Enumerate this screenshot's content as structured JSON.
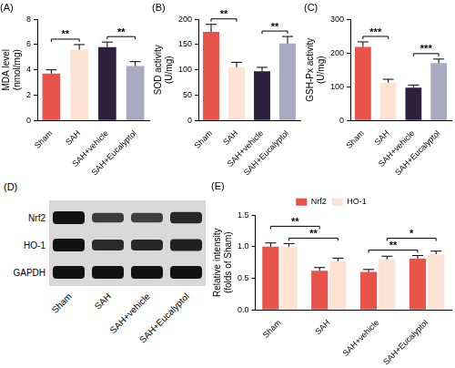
{
  "chart_data": [
    {
      "type": "bar",
      "title": "(A)",
      "y_label": [
        "MDA level",
        "(nmol/mg)"
      ],
      "categories": [
        "Sham",
        "SAH",
        "SAH+vehicle",
        "SAH+Eucalyptol"
      ],
      "values": [
        3.7,
        5.6,
        5.8,
        4.3
      ],
      "errors": [
        0.3,
        0.4,
        0.4,
        0.35
      ],
      "colors": [
        "#e8534a",
        "#fde3d3",
        "#2e1f3d",
        "#a9a9c2"
      ],
      "ylim": [
        0,
        8
      ],
      "yticks": [
        0,
        2,
        4,
        6,
        8
      ],
      "grid": false,
      "annotations": [
        {
          "text": "**",
          "between": [
            "Sham",
            "SAH"
          ]
        },
        {
          "text": "**",
          "between": [
            "SAH+vehicle",
            "SAH+Eucalyptol"
          ]
        }
      ]
    },
    {
      "type": "bar",
      "title": "(B)",
      "y_label": [
        "SOD activity",
        "(U/mg)"
      ],
      "categories": [
        "Sham",
        "SAH",
        "SAH+vehicle",
        "SAH+Eucalyptol"
      ],
      "values": [
        175,
        105,
        97,
        152
      ],
      "errors": [
        15,
        10,
        8,
        14
      ],
      "colors": [
        "#e8534a",
        "#fde3d3",
        "#2e1f3d",
        "#a9a9c2"
      ],
      "ylim": [
        0,
        200
      ],
      "yticks": [
        0,
        50,
        100,
        150,
        200
      ],
      "grid": false,
      "annotations": [
        {
          "text": "**",
          "between": [
            "Sham",
            "SAH"
          ]
        },
        {
          "text": "**",
          "between": [
            "SAH+vehicle",
            "SAH+Eucalyptol"
          ]
        }
      ]
    },
    {
      "type": "bar",
      "title": "(C)",
      "y_label": [
        "GSH-Px activity",
        "(U/mg)"
      ],
      "categories": [
        "Sham",
        "SAH",
        "SAH+vehicle",
        "SAH+Eucalyptol"
      ],
      "values": [
        218,
        112,
        97,
        170
      ],
      "errors": [
        15,
        10,
        8,
        12
      ],
      "colors": [
        "#e8534a",
        "#fde3d3",
        "#2e1f3d",
        "#a9a9c2"
      ],
      "ylim": [
        0,
        300
      ],
      "yticks": [
        0,
        100,
        200,
        300
      ],
      "grid": false,
      "annotations": [
        {
          "text": "***",
          "between": [
            "Sham",
            "SAH"
          ]
        },
        {
          "text": "***",
          "between": [
            "SAH+vehicle",
            "SAH+Eucalyptol"
          ]
        }
      ]
    },
    {
      "type": "bar",
      "title": "(E)",
      "y_label": [
        "Relative intensity",
        "(folds of Sham)"
      ],
      "categories": [
        "Sham",
        "SAH",
        "SAH+vehicle",
        "SAH+Eucalyptol"
      ],
      "series": [
        {
          "name": "Nrf2",
          "color": "#e8534a",
          "values": [
            1.0,
            0.62,
            0.6,
            0.81
          ],
          "errors": [
            0.06,
            0.05,
            0.04,
            0.05
          ]
        },
        {
          "name": "HO-1",
          "color": "#fde3d3",
          "values": [
            1.0,
            0.77,
            0.8,
            0.88
          ],
          "errors": [
            0.05,
            0.05,
            0.05,
            0.05
          ]
        }
      ],
      "ylim": [
        0,
        1.5
      ],
      "yticks": [
        {
          "value": 0,
          "label": "0.0"
        },
        {
          "value": 0.5,
          "label": "0.5"
        },
        {
          "value": 1,
          "label": "1.0"
        },
        {
          "value": 1.5,
          "label": "1.5"
        }
      ],
      "grid": false,
      "legend": "top",
      "annotations": [
        {
          "text": "**",
          "series": "HO-1",
          "between": [
            "Sham",
            "SAH"
          ]
        },
        {
          "text": "**",
          "series": "Nrf2",
          "between": [
            "Sham",
            "SAH"
          ]
        },
        {
          "text": "**",
          "series": "Nrf2",
          "between": [
            "SAH+vehicle",
            "SAH+Eucalyptol"
          ]
        },
        {
          "text": "*",
          "series": "HO-1",
          "between": [
            "SAH+vehicle",
            "SAH+Eucalyptol"
          ]
        }
      ]
    }
  ],
  "blot": {
    "title": "(D)",
    "rows": [
      "Nrf2",
      "HO-1",
      "GAPDH"
    ],
    "lanes": [
      "Sham",
      "SAH",
      "SAH+vehicle",
      "SAH+Eucalyptol"
    ]
  }
}
